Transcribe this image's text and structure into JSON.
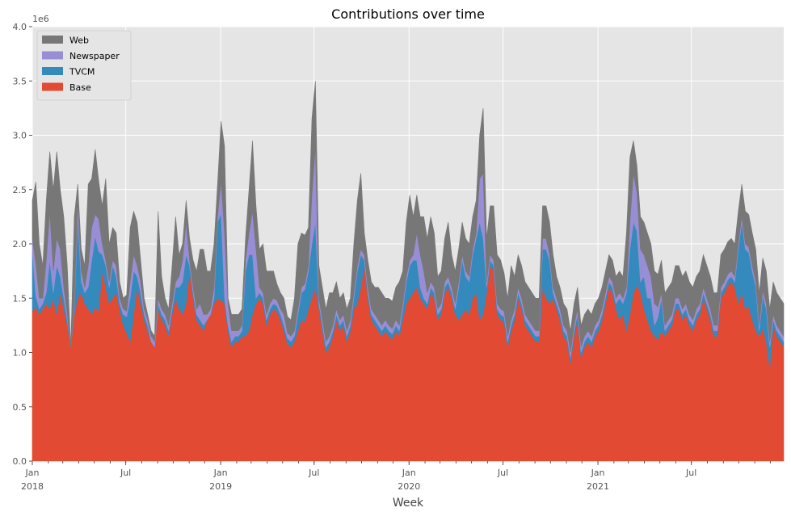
{
  "chart_data": {
    "type": "area",
    "stacked": true,
    "title": "Contributions over time",
    "xlabel": "Week",
    "ylabel": "",
    "y_offset_label": "1e6",
    "ylim": [
      0,
      4.0
    ],
    "y_ticks": [
      "0.0",
      "0.5",
      "1.0",
      "1.5",
      "2.0",
      "2.5",
      "3.0",
      "3.5",
      "4.0"
    ],
    "x_range": [
      "2018-01-01",
      "2021-12-27"
    ],
    "x_major_ticks": [
      {
        "date": "2018-01-01",
        "label": "Jan",
        "sublabel": "2018"
      },
      {
        "date": "2018-07-01",
        "label": "Jul",
        "sublabel": ""
      },
      {
        "date": "2019-01-01",
        "label": "Jan",
        "sublabel": "2019"
      },
      {
        "date": "2019-07-01",
        "label": "Jul",
        "sublabel": ""
      },
      {
        "date": "2020-01-01",
        "label": "Jan",
        "sublabel": "2020"
      },
      {
        "date": "2020-07-01",
        "label": "Jul",
        "sublabel": ""
      },
      {
        "date": "2021-01-01",
        "label": "Jan",
        "sublabel": "2021"
      },
      {
        "date": "2021-07-01",
        "label": "Jul",
        "sublabel": ""
      }
    ],
    "grid": true,
    "legend_position": "top-left",
    "series": [
      {
        "name": "Base",
        "color": "#E24A33",
        "values": [
          1.38,
          1.42,
          1.35,
          1.4,
          1.45,
          1.4,
          1.5,
          1.35,
          1.55,
          1.4,
          1.25,
          1.05,
          1.35,
          1.5,
          1.55,
          1.45,
          1.4,
          1.35,
          1.42,
          1.38,
          1.75,
          1.6,
          1.45,
          1.5,
          1.55,
          1.4,
          1.25,
          1.18,
          1.1,
          1.35,
          1.6,
          1.45,
          1.3,
          1.2,
          1.1,
          1.05,
          1.4,
          1.3,
          1.25,
          1.15,
          1.35,
          1.5,
          1.4,
          1.35,
          1.45,
          1.75,
          1.5,
          1.3,
          1.25,
          1.2,
          1.3,
          1.35,
          1.45,
          1.5,
          1.48,
          1.45,
          1.2,
          1.05,
          1.1,
          1.1,
          1.15,
          1.15,
          1.2,
          1.35,
          1.45,
          1.5,
          1.45,
          1.25,
          1.35,
          1.4,
          1.38,
          1.3,
          1.2,
          1.08,
          1.05,
          1.1,
          1.2,
          1.3,
          1.28,
          1.4,
          1.5,
          1.6,
          1.4,
          1.2,
          1.0,
          1.05,
          1.15,
          1.3,
          1.2,
          1.25,
          1.1,
          1.2,
          1.4,
          1.45,
          1.6,
          1.8,
          1.5,
          1.3,
          1.25,
          1.2,
          1.15,
          1.2,
          1.15,
          1.12,
          1.2,
          1.15,
          1.3,
          1.45,
          1.5,
          1.55,
          1.6,
          1.5,
          1.45,
          1.4,
          1.55,
          1.5,
          1.3,
          1.35,
          1.55,
          1.6,
          1.5,
          1.35,
          1.3,
          1.35,
          1.4,
          1.35,
          1.5,
          1.55,
          1.3,
          1.35,
          1.55,
          1.8,
          1.75,
          1.35,
          1.3,
          1.28,
          1.05,
          1.2,
          1.3,
          1.5,
          1.4,
          1.25,
          1.2,
          1.15,
          1.1,
          1.1,
          1.6,
          1.5,
          1.45,
          1.5,
          1.4,
          1.3,
          1.15,
          1.1,
          0.9,
          1.15,
          1.3,
          0.95,
          1.05,
          1.1,
          1.05,
          1.15,
          1.2,
          1.3,
          1.45,
          1.6,
          1.55,
          1.4,
          1.3,
          1.35,
          1.2,
          1.35,
          1.55,
          1.62,
          1.55,
          1.4,
          1.3,
          1.2,
          1.15,
          1.12,
          1.2,
          1.15,
          1.2,
          1.25,
          1.4,
          1.4,
          1.3,
          1.35,
          1.25,
          1.2,
          1.3,
          1.35,
          1.5,
          1.4,
          1.3,
          1.15,
          1.15,
          1.5,
          1.55,
          1.62,
          1.65,
          1.6,
          1.45,
          1.55,
          1.4,
          1.42,
          1.3,
          1.2,
          1.15,
          1.22,
          1.1,
          0.85,
          1.25,
          1.15,
          1.1,
          1.05
        ]
      },
      {
        "name": "TVCM",
        "color": "#348ABD",
        "values": [
          0.55,
          0.1,
          0.05,
          0.05,
          0.1,
          0.45,
          0.05,
          0.45,
          0.15,
          0.1,
          0.05,
          0.0,
          0.05,
          0.75,
          0.1,
          0.1,
          0.2,
          0.5,
          0.65,
          0.55,
          0.15,
          0.2,
          0.15,
          0.3,
          0.15,
          0.05,
          0.1,
          0.15,
          0.4,
          0.4,
          0.1,
          0.1,
          0.05,
          0.05,
          0.0,
          0.0,
          0.05,
          0.05,
          0.05,
          0.05,
          0.05,
          0.1,
          0.2,
          0.3,
          0.45,
          0.05,
          0.05,
          0.05,
          0.05,
          0.05,
          0.0,
          0.0,
          0.05,
          0.7,
          0.8,
          0.05,
          0.05,
          0.05,
          0.05,
          0.05,
          0.05,
          0.6,
          0.7,
          0.55,
          0.05,
          0.05,
          0.05,
          0.05,
          0.05,
          0.05,
          0.05,
          0.05,
          0.05,
          0.05,
          0.05,
          0.05,
          0.15,
          0.25,
          0.3,
          0.35,
          0.5,
          0.6,
          0.05,
          0.05,
          0.05,
          0.05,
          0.05,
          0.05,
          0.05,
          0.05,
          0.05,
          0.05,
          0.1,
          0.3,
          0.3,
          0.05,
          0.05,
          0.05,
          0.05,
          0.05,
          0.05,
          0.05,
          0.05,
          0.05,
          0.05,
          0.05,
          0.1,
          0.2,
          0.3,
          0.3,
          0.25,
          0.1,
          0.05,
          0.05,
          0.05,
          0.05,
          0.05,
          0.05,
          0.05,
          0.05,
          0.05,
          0.05,
          0.3,
          0.5,
          0.3,
          0.3,
          0.4,
          0.5,
          0.9,
          0.7,
          0.05,
          0.05,
          0.05,
          0.05,
          0.05,
          0.05,
          0.05,
          0.05,
          0.05,
          0.05,
          0.05,
          0.05,
          0.05,
          0.05,
          0.05,
          0.05,
          0.35,
          0.45,
          0.4,
          0.05,
          0.05,
          0.05,
          0.05,
          0.05,
          0.05,
          0.05,
          0.05,
          0.05,
          0.05,
          0.05,
          0.05,
          0.05,
          0.05,
          0.05,
          0.05,
          0.05,
          0.05,
          0.05,
          0.2,
          0.1,
          0.35,
          0.6,
          0.65,
          0.5,
          0.1,
          0.3,
          0.2,
          0.3,
          0.1,
          0.2,
          0.3,
          0.05,
          0.05,
          0.05,
          0.05,
          0.05,
          0.05,
          0.05,
          0.05,
          0.05,
          0.05,
          0.05,
          0.05,
          0.05,
          0.05,
          0.05,
          0.05,
          0.05,
          0.05,
          0.05,
          0.05,
          0.05,
          0.5,
          0.65,
          0.55,
          0.5,
          0.45,
          0.4,
          0.05,
          0.3,
          0.3,
          0.2,
          0.05,
          0.05,
          0.05,
          0.05,
          0.05,
          0.05,
          0.05,
          0.05,
          0.05
        ]
      },
      {
        "name": "Newspaper",
        "color": "#988ED5",
        "values": [
          0.12,
          0.3,
          0.1,
          0.05,
          0.3,
          0.45,
          0.2,
          0.25,
          0.25,
          0.1,
          0.05,
          0.0,
          0.05,
          0.15,
          0.1,
          0.05,
          0.2,
          0.3,
          0.2,
          0.3,
          0.1,
          0.05,
          0.05,
          0.05,
          0.1,
          0.05,
          0.05,
          0.05,
          0.15,
          0.15,
          0.1,
          0.1,
          0.05,
          0.05,
          0.05,
          0.05,
          0.05,
          0.05,
          0.05,
          0.05,
          0.05,
          0.05,
          0.1,
          0.2,
          0.3,
          0.05,
          0.05,
          0.05,
          0.15,
          0.1,
          0.05,
          0.05,
          0.1,
          0.05,
          0.3,
          0.6,
          0.2,
          0.1,
          0.05,
          0.05,
          0.05,
          0.1,
          0.2,
          0.4,
          0.45,
          0.05,
          0.05,
          0.05,
          0.05,
          0.05,
          0.05,
          0.05,
          0.1,
          0.05,
          0.05,
          0.05,
          0.05,
          0.05,
          0.05,
          0.05,
          0.45,
          0.7,
          0.05,
          0.05,
          0.05,
          0.05,
          0.05,
          0.05,
          0.05,
          0.05,
          0.05,
          0.05,
          0.05,
          0.05,
          0.05,
          0.05,
          0.05,
          0.05,
          0.05,
          0.05,
          0.05,
          0.05,
          0.05,
          0.05,
          0.05,
          0.05,
          0.05,
          0.05,
          0.05,
          0.05,
          0.25,
          0.3,
          0.25,
          0.1,
          0.05,
          0.05,
          0.05,
          0.05,
          0.05,
          0.05,
          0.05,
          0.05,
          0.05,
          0.05,
          0.05,
          0.05,
          0.05,
          0.05,
          0.4,
          0.6,
          0.05,
          0.05,
          0.05,
          0.05,
          0.05,
          0.05,
          0.05,
          0.05,
          0.05,
          0.05,
          0.05,
          0.05,
          0.05,
          0.05,
          0.05,
          0.05,
          0.1,
          0.1,
          0.05,
          0.05,
          0.05,
          0.05,
          0.05,
          0.05,
          0.05,
          0.05,
          0.05,
          0.05,
          0.05,
          0.05,
          0.05,
          0.05,
          0.05,
          0.05,
          0.05,
          0.05,
          0.05,
          0.05,
          0.05,
          0.05,
          0.05,
          0.25,
          0.45,
          0.35,
          0.3,
          0.2,
          0.3,
          0.2,
          0.2,
          0.1,
          0.05,
          0.05,
          0.05,
          0.05,
          0.05,
          0.05,
          0.05,
          0.05,
          0.05,
          0.05,
          0.05,
          0.05,
          0.05,
          0.05,
          0.05,
          0.05,
          0.05,
          0.05,
          0.05,
          0.05,
          0.05,
          0.05,
          0.05,
          0.05,
          0.05,
          0.05,
          0.05,
          0.05,
          0.05,
          0.05,
          0.05,
          0.05,
          0.05,
          0.05,
          0.05,
          0.05,
          0.05,
          0.05,
          0.05,
          0.05,
          0.05,
          0.05,
          0.05,
          0.05,
          0.05,
          0.05,
          0.05
        ]
      },
      {
        "name": "Web",
        "color": "#777777",
        "values": [
          0.35,
          0.75,
          0.5,
          0.3,
          0.55,
          0.55,
          0.75,
          0.8,
          0.55,
          0.65,
          0.45,
          0.0,
          0.8,
          0.15,
          0.2,
          0.2,
          0.75,
          0.45,
          0.6,
          0.35,
          0.35,
          0.75,
          0.35,
          0.3,
          0.3,
          0.15,
          0.1,
          0.15,
          0.5,
          0.4,
          0.4,
          0.2,
          0.1,
          0.05,
          0.05,
          0.05,
          0.8,
          0.3,
          0.15,
          0.15,
          0.35,
          0.6,
          0.2,
          0.15,
          0.2,
          0.2,
          0.25,
          0.35,
          0.5,
          0.6,
          0.4,
          0.35,
          0.4,
          0.3,
          0.55,
          0.8,
          0.05,
          0.15,
          0.15,
          0.15,
          0.15,
          0.2,
          0.4,
          0.65,
          0.4,
          0.35,
          0.45,
          0.4,
          0.3,
          0.25,
          0.15,
          0.15,
          0.15,
          0.15,
          0.15,
          0.3,
          0.6,
          0.5,
          0.45,
          0.35,
          0.7,
          0.6,
          0.3,
          0.3,
          0.3,
          0.4,
          0.3,
          0.25,
          0.2,
          0.2,
          0.2,
          0.2,
          0.45,
          0.6,
          0.7,
          0.2,
          0.25,
          0.25,
          0.25,
          0.3,
          0.3,
          0.2,
          0.25,
          0.25,
          0.3,
          0.4,
          0.3,
          0.5,
          0.6,
          0.35,
          0.35,
          0.35,
          0.5,
          0.5,
          0.6,
          0.5,
          0.3,
          0.3,
          0.4,
          0.5,
          0.3,
          0.3,
          0.3,
          0.3,
          0.3,
          0.3,
          0.3,
          0.3,
          0.4,
          0.6,
          0.4,
          0.45,
          0.5,
          0.45,
          0.45,
          0.35,
          0.35,
          0.5,
          0.3,
          0.3,
          0.3,
          0.3,
          0.3,
          0.3,
          0.3,
          0.3,
          0.3,
          0.3,
          0.3,
          0.3,
          0.2,
          0.2,
          0.2,
          0.2,
          0.2,
          0.2,
          0.2,
          0.2,
          0.2,
          0.2,
          0.2,
          0.2,
          0.2,
          0.2,
          0.2,
          0.2,
          0.2,
          0.2,
          0.2,
          0.2,
          0.5,
          0.6,
          0.3,
          0.25,
          0.3,
          0.3,
          0.3,
          0.3,
          0.3,
          0.3,
          0.3,
          0.3,
          0.3,
          0.3,
          0.3,
          0.3,
          0.3,
          0.3,
          0.3,
          0.3,
          0.3,
          0.3,
          0.3,
          0.3,
          0.3,
          0.3,
          0.3,
          0.3,
          0.3,
          0.3,
          0.3,
          0.3,
          0.3,
          0.3,
          0.3,
          0.3,
          0.3,
          0.3,
          0.3,
          0.3,
          0.3,
          0.3,
          0.3,
          0.3,
          0.3,
          0.3,
          0.3,
          0.3,
          0.3,
          0.3,
          0.3,
          0.3,
          0.3,
          0.3,
          0.3,
          0.3
        ]
      }
    ]
  }
}
